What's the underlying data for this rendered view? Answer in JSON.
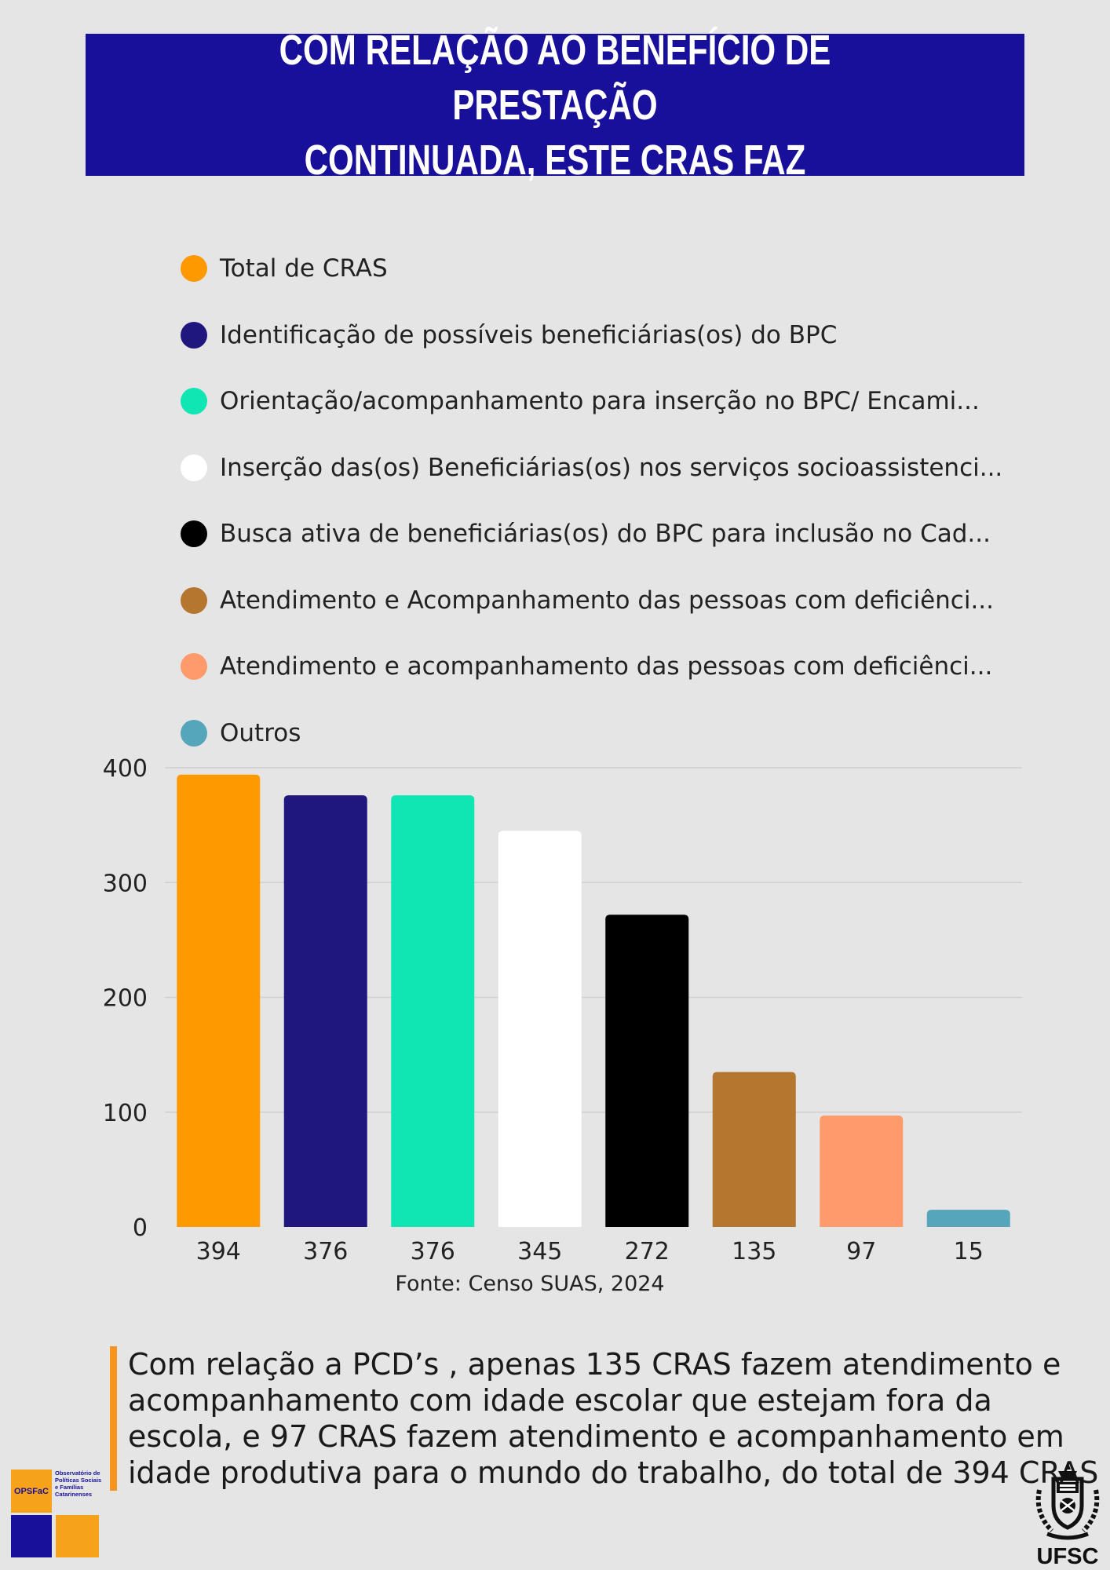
{
  "header": {
    "title_line1": "COM RELAÇÃO AO BENEFÍCIO DE PRESTAÇÃO",
    "title_line2": "CONTINUADA, ESTE CRAS FAZ"
  },
  "chart_data": {
    "type": "bar",
    "title": "COM RELAÇÃO AO BENEFÍCIO DE PRESTAÇÃO CONTINUADA, ESTE CRAS FAZ",
    "categories": [
      "Total de CRAS",
      "Identificação de possíveis beneficiárias(os) do BPC",
      "Orientação/acompanhamento para inserção no BPC/ Encami...",
      "Inserção das(os) Beneficiárias(os) nos serviços socioassistenci...",
      "Busca ativa de beneficiárias(os) do BPC para inclusão no Cad...",
      "Atendimento e Acompanhamento das pessoas com deficiênci...",
      "Atendimento e acompanhamento das pessoas com deficiênci...",
      "Outros"
    ],
    "values": [
      394,
      376,
      376,
      345,
      272,
      135,
      97,
      15
    ],
    "colors": [
      "#ff9900",
      "#1f177e",
      "#0fe6b4",
      "#ffffff",
      "#000000",
      "#b5772f",
      "#ff9a6a",
      "#55a5bb"
    ],
    "x_tick_labels": [
      "394",
      "376",
      "376",
      "345",
      "272",
      "135",
      "97",
      "15"
    ],
    "yticks": [
      0,
      100,
      200,
      300,
      400
    ],
    "ylim": [
      0,
      400
    ],
    "xlabel": "",
    "ylabel": "",
    "legend_position": "top",
    "grid": true
  },
  "source": "Fonte: Censo SUAS, 2024",
  "note": "Com relação a PCD’s , apenas 135 CRAS fazem atendimento e acompanhamento com idade escolar que estejam fora da escola, e 97 CRAS fazem atendimento e acompanhamento em idade produtiva para o mundo do trabalho, do total de 394 CRAS",
  "logos": {
    "opsfac_abbrev": "OPSFaC",
    "opsfac_name": "Observatório de Políticas Sociais e Famílias Catarinenses",
    "ufsc": "UFSC"
  },
  "colors": {
    "banner": "#18109a",
    "background": "#e5e5e5",
    "accent": "#f7941d"
  }
}
